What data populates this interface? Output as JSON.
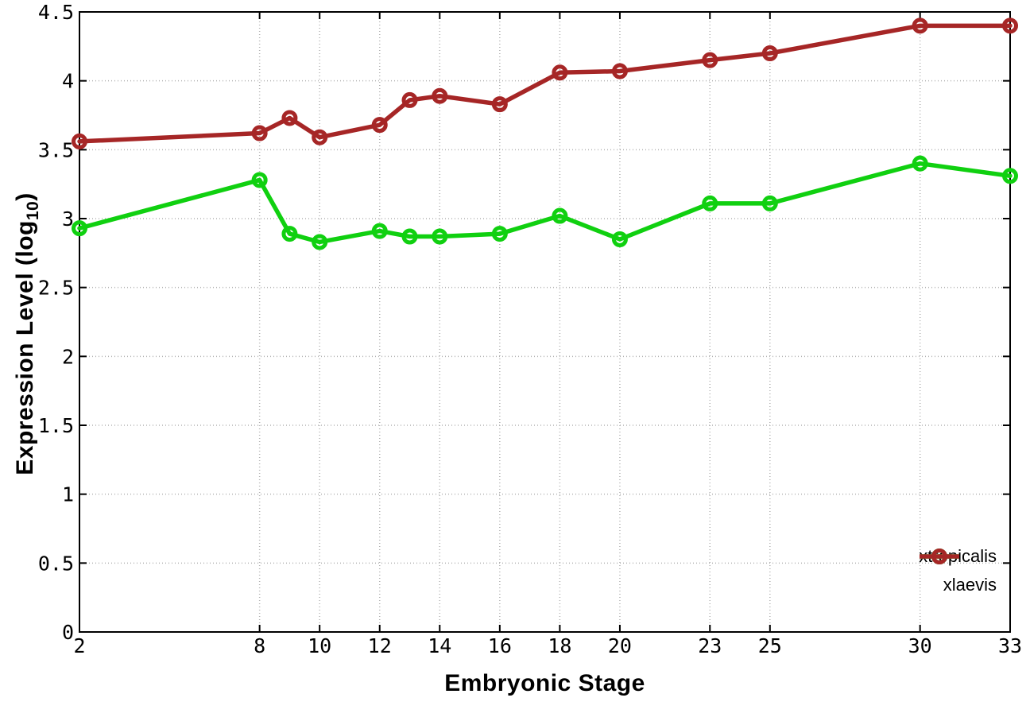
{
  "chart_data": {
    "type": "line",
    "title": "",
    "xlabel": "Embryonic Stage",
    "ylabel_prefix": "Expression Level (log",
    "ylabel_subscript": "10",
    "ylabel_suffix": ")",
    "xlim": [
      2,
      33
    ],
    "ylim": [
      0,
      4.5
    ],
    "grid": true,
    "grid_style": "dotted",
    "legend_position": "inside-bottom-right",
    "x_tick_values": [
      2,
      8,
      10,
      12,
      14,
      16,
      18,
      20,
      23,
      25,
      30,
      33
    ],
    "x_tick_labels": [
      "2",
      "8",
      "10",
      "12",
      "14",
      "16",
      "18",
      "20",
      "23",
      "25",
      "30",
      "33"
    ],
    "y_tick_values": [
      0,
      0.5,
      1,
      1.5,
      2,
      2.5,
      3,
      3.5,
      4,
      4.5
    ],
    "y_tick_labels": [
      "0",
      "0.5",
      "1",
      "1.5",
      "2",
      "2.5",
      "3",
      "3.5",
      "4",
      "4.5"
    ],
    "x": [
      2,
      8,
      9,
      10,
      12,
      13,
      14,
      16,
      18,
      20,
      23,
      25,
      30,
      33
    ],
    "series": [
      {
        "name": "xtropicalis",
        "color": "#10d010",
        "marker": "open-circle",
        "values": [
          2.93,
          3.28,
          2.89,
          2.83,
          2.91,
          2.87,
          2.87,
          2.89,
          3.02,
          2.85,
          3.11,
          3.11,
          3.4,
          3.31
        ]
      },
      {
        "name": "xlaevis",
        "color": "#a62626",
        "marker": "open-circle",
        "values": [
          3.56,
          3.62,
          3.73,
          3.59,
          3.68,
          3.86,
          3.89,
          3.83,
          4.06,
          4.07,
          4.15,
          4.2,
          4.4,
          4.4
        ]
      }
    ],
    "colors": {
      "grid": "#b2b2b2",
      "axis": "#000000",
      "text": "#000000",
      "background": "#ffffff"
    }
  }
}
